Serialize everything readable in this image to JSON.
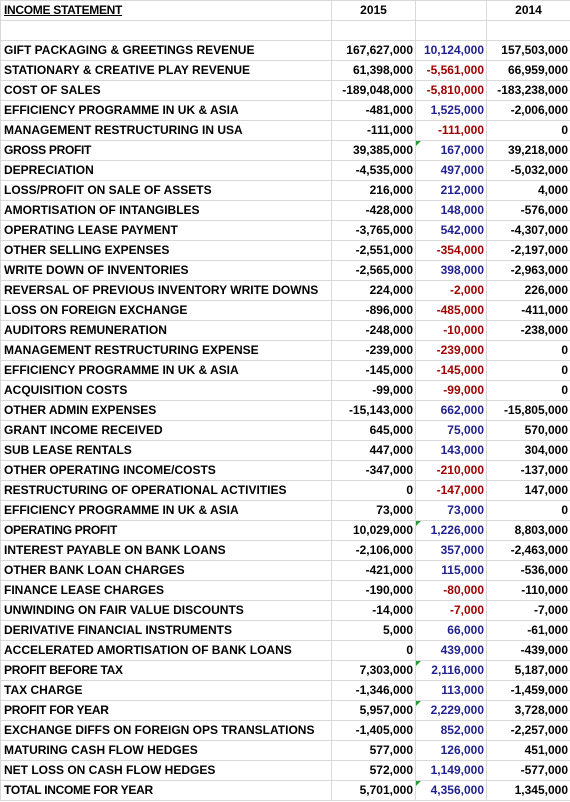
{
  "header": {
    "title": "INCOME STATEMENT",
    "col_2015": "2015",
    "col_2014": "2014"
  },
  "colors": {
    "positive_change": "#1f1f8f",
    "negative_change": "#a00000",
    "text": "#000000",
    "cell_marker": "#2e9b3a"
  },
  "rows": [
    {
      "label": "GIFT PACKAGING & GREETINGS REVENUE",
      "y2015": "167,627,000",
      "change": "10,124,000",
      "y2014": "157,503,000",
      "sign": "pos",
      "total": false,
      "marker": false
    },
    {
      "label": "STATIONARY & CREATIVE PLAY REVENUE",
      "y2015": "61,398,000",
      "change": "-5,561,000",
      "y2014": "66,959,000",
      "sign": "neg",
      "total": false,
      "marker": false
    },
    {
      "label": "COST OF SALES",
      "y2015": "-189,048,000",
      "change": "-5,810,000",
      "y2014": "-183,238,000",
      "sign": "neg",
      "total": false,
      "marker": false
    },
    {
      "label": "EFFICIENCY PROGRAMME IN UK & ASIA",
      "y2015": "-481,000",
      "change": "1,525,000",
      "y2014": "-2,006,000",
      "sign": "pos",
      "total": false,
      "marker": false
    },
    {
      "label": "MANAGEMENT RESTRUCTURING IN USA",
      "y2015": "-111,000",
      "change": "-111,000",
      "y2014": "0",
      "sign": "neg",
      "total": false,
      "marker": false
    },
    {
      "label": "GROSS PROFIT",
      "y2015": "39,385,000",
      "change": "167,000",
      "y2014": "39,218,000",
      "sign": "pos",
      "total": true,
      "marker": true
    },
    {
      "label": "DEPRECIATION",
      "y2015": "-4,535,000",
      "change": "497,000",
      "y2014": "-5,032,000",
      "sign": "pos",
      "total": false,
      "marker": false
    },
    {
      "label": "LOSS/PROFIT ON SALE OF ASSETS",
      "y2015": "216,000",
      "change": "212,000",
      "y2014": "4,000",
      "sign": "pos",
      "total": false,
      "marker": false
    },
    {
      "label": "AMORTISATION OF INTANGIBLES",
      "y2015": "-428,000",
      "change": "148,000",
      "y2014": "-576,000",
      "sign": "pos",
      "total": false,
      "marker": false
    },
    {
      "label": "OPERATING LEASE PAYMENT",
      "y2015": "-3,765,000",
      "change": "542,000",
      "y2014": "-4,307,000",
      "sign": "pos",
      "total": false,
      "marker": false
    },
    {
      "label": "OTHER SELLING EXPENSES",
      "y2015": "-2,551,000",
      "change": "-354,000",
      "y2014": "-2,197,000",
      "sign": "neg",
      "total": false,
      "marker": false
    },
    {
      "label": "WRITE DOWN OF INVENTORIES",
      "y2015": "-2,565,000",
      "change": "398,000",
      "y2014": "-2,963,000",
      "sign": "pos",
      "total": false,
      "marker": false
    },
    {
      "label": "REVERSAL OF PREVIOUS INVENTORY WRITE DOWNS",
      "y2015": "224,000",
      "change": "-2,000",
      "y2014": "226,000",
      "sign": "neg",
      "total": false,
      "marker": false
    },
    {
      "label": "LOSS ON FOREIGN EXCHANGE",
      "y2015": "-896,000",
      "change": "-485,000",
      "y2014": "-411,000",
      "sign": "neg",
      "total": false,
      "marker": false
    },
    {
      "label": "AUDITORS REMUNERATION",
      "y2015": "-248,000",
      "change": "-10,000",
      "y2014": "-238,000",
      "sign": "neg",
      "total": false,
      "marker": false
    },
    {
      "label": "MANAGEMENT RESTRUCTURING EXPENSE",
      "y2015": "-239,000",
      "change": "-239,000",
      "y2014": "0",
      "sign": "neg",
      "total": false,
      "marker": false
    },
    {
      "label": "EFFICIENCY PROGRAMME IN UK & ASIA",
      "y2015": "-145,000",
      "change": "-145,000",
      "y2014": "0",
      "sign": "neg",
      "total": false,
      "marker": false
    },
    {
      "label": "ACQUISITION COSTS",
      "y2015": "-99,000",
      "change": "-99,000",
      "y2014": "0",
      "sign": "neg",
      "total": false,
      "marker": false
    },
    {
      "label": "OTHER ADMIN EXPENSES",
      "y2015": "-15,143,000",
      "change": "662,000",
      "y2014": "-15,805,000",
      "sign": "pos",
      "total": false,
      "marker": false
    },
    {
      "label": "GRANT INCOME RECEIVED",
      "y2015": "645,000",
      "change": "75,000",
      "y2014": "570,000",
      "sign": "pos",
      "total": false,
      "marker": false
    },
    {
      "label": "SUB LEASE RENTALS",
      "y2015": "447,000",
      "change": "143,000",
      "y2014": "304,000",
      "sign": "pos",
      "total": false,
      "marker": false
    },
    {
      "label": "OTHER OPERATING INCOME/COSTS",
      "y2015": "-347,000",
      "change": "-210,000",
      "y2014": "-137,000",
      "sign": "neg",
      "total": false,
      "marker": false
    },
    {
      "label": "RESTRUCTURING OF OPERATIONAL ACTIVITIES",
      "y2015": "0",
      "change": "-147,000",
      "y2014": "147,000",
      "sign": "neg",
      "total": false,
      "marker": false
    },
    {
      "label": "EFFICIENCY PROGRAMME IN UK & ASIA",
      "y2015": "73,000",
      "change": "73,000",
      "y2014": "0",
      "sign": "pos",
      "total": false,
      "marker": false
    },
    {
      "label": "OPERATING PROFIT",
      "y2015": "10,029,000",
      "change": "1,226,000",
      "y2014": "8,803,000",
      "sign": "pos",
      "total": true,
      "marker": true
    },
    {
      "label": "INTEREST PAYABLE ON BANK LOANS",
      "y2015": "-2,106,000",
      "change": "357,000",
      "y2014": "-2,463,000",
      "sign": "pos",
      "total": false,
      "marker": false
    },
    {
      "label": "OTHER BANK LOAN CHARGES",
      "y2015": "-421,000",
      "change": "115,000",
      "y2014": "-536,000",
      "sign": "pos",
      "total": false,
      "marker": false
    },
    {
      "label": "FINANCE LEASE CHARGES",
      "y2015": "-190,000",
      "change": "-80,000",
      "y2014": "-110,000",
      "sign": "neg",
      "total": false,
      "marker": false
    },
    {
      "label": "UNWINDING ON FAIR VALUE DISCOUNTS",
      "y2015": "-14,000",
      "change": "-7,000",
      "y2014": "-7,000",
      "sign": "neg",
      "total": false,
      "marker": false
    },
    {
      "label": "DERIVATIVE FINANCIAL INSTRUMENTS",
      "y2015": "5,000",
      "change": "66,000",
      "y2014": "-61,000",
      "sign": "pos",
      "total": false,
      "marker": false
    },
    {
      "label": "ACCELERATED AMORTISATION OF BANK LOANS",
      "y2015": "0",
      "change": "439,000",
      "y2014": "-439,000",
      "sign": "pos",
      "total": false,
      "marker": false
    },
    {
      "label": "PROFIT BEFORE TAX",
      "y2015": "7,303,000",
      "change": "2,116,000",
      "y2014": "5,187,000",
      "sign": "pos",
      "total": true,
      "marker": true
    },
    {
      "label": "TAX CHARGE",
      "y2015": "-1,346,000",
      "change": "113,000",
      "y2014": "-1,459,000",
      "sign": "pos",
      "total": false,
      "marker": false
    },
    {
      "label": "PROFIT FOR YEAR",
      "y2015": "5,957,000",
      "change": "2,229,000",
      "y2014": "3,728,000",
      "sign": "pos",
      "total": true,
      "marker": true
    },
    {
      "label": "EXCHANGE DIFFS ON FOREIGN OPS TRANSLATIONS",
      "y2015": "-1,405,000",
      "change": "852,000",
      "y2014": "-2,257,000",
      "sign": "pos",
      "total": false,
      "marker": false
    },
    {
      "label": "MATURING CASH FLOW HEDGES",
      "y2015": "577,000",
      "change": "126,000",
      "y2014": "451,000",
      "sign": "pos",
      "total": false,
      "marker": false
    },
    {
      "label": "NET LOSS ON CASH FLOW HEDGES",
      "y2015": "572,000",
      "change": "1,149,000",
      "y2014": "-577,000",
      "sign": "pos",
      "total": false,
      "marker": false
    },
    {
      "label": "TOTAL INCOME FOR YEAR",
      "y2015": "5,701,000",
      "change": "4,356,000",
      "y2014": "1,345,000",
      "sign": "pos",
      "total": true,
      "marker": true
    }
  ]
}
